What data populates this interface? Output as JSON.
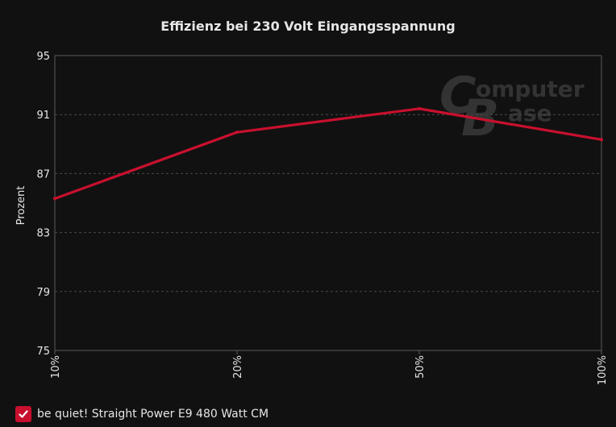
{
  "colors": {
    "background": "#111111",
    "grid": "#4a4a4a",
    "axis": "#5a5a5a",
    "text": "#e6e6e6",
    "series": "#c8102e",
    "watermark": "#3a3a3a"
  },
  "watermark": {
    "line1": "omputer",
    "line2": "ase"
  },
  "chart_data": {
    "type": "line",
    "title": "Effizienz bei 230 Volt Eingangsspannung",
    "xlabel": "",
    "ylabel": "Prozent",
    "categories": [
      "10%",
      "20%",
      "50%",
      "100%"
    ],
    "ylim": [
      75,
      95
    ],
    "yticks": [
      75,
      79,
      83,
      87,
      91,
      95
    ],
    "grid": true,
    "legend_position": "bottom-left",
    "series": [
      {
        "name": "be quiet! Straight Power E9 480 Watt CM",
        "values": [
          85.3,
          89.8,
          91.4,
          89.3
        ]
      }
    ]
  }
}
